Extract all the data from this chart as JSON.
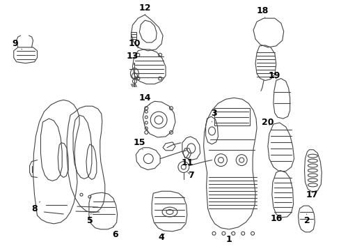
{
  "bg_color": "#ffffff",
  "line_color": "#444444",
  "label_color": "#000000",
  "label_fontsize": 9.0,
  "figsize": [
    4.9,
    3.6
  ],
  "dpi": 100
}
